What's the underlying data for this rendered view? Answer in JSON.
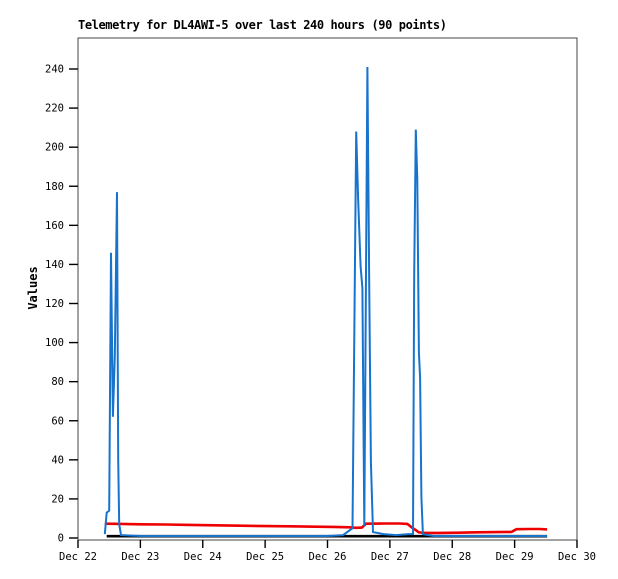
{
  "chart_data": {
    "type": "line",
    "title": "Telemetry for DL4AWI-5 over last 240 hours (90 points)",
    "ylabel": "Values",
    "xlabel": "",
    "ylim": [
      0,
      256
    ],
    "yticks": [
      0,
      20,
      40,
      60,
      80,
      100,
      120,
      140,
      160,
      180,
      200,
      220,
      240
    ],
    "xtick_days": [
      0,
      1,
      2,
      3,
      4,
      5,
      6,
      7,
      8
    ],
    "xtick_labels": [
      "Dec 22",
      "Dec 23",
      "Dec 24",
      "Dec 25",
      "Dec 26",
      "Dec 27",
      "Dec 28",
      "Dec 29",
      "Dec 30"
    ],
    "x_unit": "days after Dec 22 00:00",
    "grid": false,
    "legend_position": "none",
    "series": [
      {
        "name": "red-series",
        "color": "#ee0000",
        "width": 2.6,
        "points": [
          [
            0.43,
            7.3
          ],
          [
            0.7,
            7.2
          ],
          [
            1.0,
            7.0
          ],
          [
            1.4,
            6.9
          ],
          [
            1.8,
            6.7
          ],
          [
            2.2,
            6.5
          ],
          [
            2.6,
            6.3
          ],
          [
            3.0,
            6.1
          ],
          [
            3.4,
            6.0
          ],
          [
            3.8,
            5.8
          ],
          [
            4.1,
            5.7
          ],
          [
            4.35,
            5.5
          ],
          [
            4.45,
            5.2
          ],
          [
            4.55,
            5.3
          ],
          [
            4.62,
            7.3
          ],
          [
            4.9,
            7.4
          ],
          [
            5.15,
            7.4
          ],
          [
            5.28,
            7.2
          ],
          [
            5.36,
            5.2
          ],
          [
            5.41,
            4.2
          ],
          [
            5.46,
            2.9
          ],
          [
            5.55,
            2.6
          ],
          [
            5.8,
            2.6
          ],
          [
            6.1,
            2.7
          ],
          [
            6.4,
            2.9
          ],
          [
            6.7,
            3.0
          ],
          [
            6.95,
            3.1
          ],
          [
            7.03,
            4.5
          ],
          [
            7.25,
            4.6
          ],
          [
            7.4,
            4.6
          ],
          [
            7.52,
            4.4
          ]
        ]
      },
      {
        "name": "black-series",
        "color": "#000000",
        "width": 2.6,
        "points": [
          [
            0.46,
            0.9
          ],
          [
            7.52,
            0.9
          ]
        ]
      },
      {
        "name": "blue-series",
        "color": "#1873cd",
        "width": 2,
        "points": [
          [
            0.43,
            2
          ],
          [
            0.46,
            13
          ],
          [
            0.5,
            14
          ],
          [
            0.529,
            146
          ],
          [
            0.56,
            62
          ],
          [
            0.59,
            93
          ],
          [
            0.625,
            177
          ],
          [
            0.645,
            40
          ],
          [
            0.66,
            7
          ],
          [
            0.69,
            1.5
          ],
          [
            1.0,
            1
          ],
          [
            1.5,
            1
          ],
          [
            2.0,
            1
          ],
          [
            2.5,
            1
          ],
          [
            3.0,
            1
          ],
          [
            3.5,
            1
          ],
          [
            4.0,
            1
          ],
          [
            4.25,
            1.5
          ],
          [
            4.4,
            5
          ],
          [
            4.46,
            208
          ],
          [
            4.49,
            174
          ],
          [
            4.53,
            139
          ],
          [
            4.56,
            128
          ],
          [
            4.59,
            6
          ],
          [
            4.64,
            241
          ],
          [
            4.67,
            125
          ],
          [
            4.695,
            39
          ],
          [
            4.73,
            3
          ],
          [
            4.9,
            2
          ],
          [
            5.1,
            1.5
          ],
          [
            5.3,
            2
          ],
          [
            5.37,
            2
          ],
          [
            5.39,
            135
          ],
          [
            5.415,
            209
          ],
          [
            5.44,
            183
          ],
          [
            5.465,
            95
          ],
          [
            5.485,
            82
          ],
          [
            5.505,
            21
          ],
          [
            5.53,
            2
          ],
          [
            5.7,
            1
          ],
          [
            6.0,
            1
          ],
          [
            6.4,
            1
          ],
          [
            6.8,
            1
          ],
          [
            7.2,
            1
          ],
          [
            7.52,
            1
          ]
        ]
      }
    ]
  },
  "colors": {
    "background": "#ffffff",
    "plot_border": "#444444",
    "tick": "#000000",
    "text": "#000000",
    "blue_series": "#1873cd",
    "red_series": "#ee0000",
    "black_series": "#000000"
  }
}
